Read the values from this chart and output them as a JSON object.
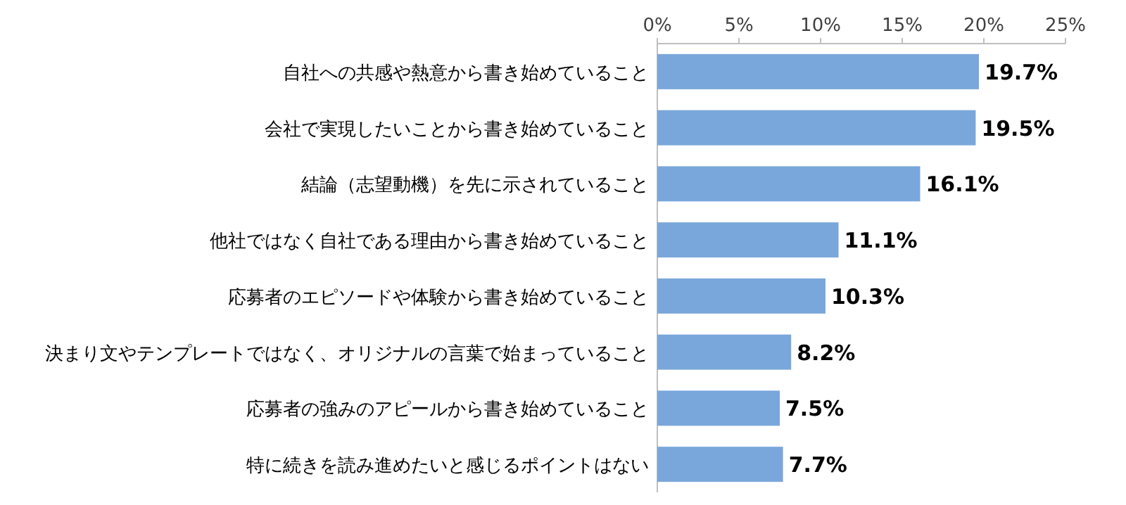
{
  "chart_data": {
    "type": "bar",
    "orientation": "horizontal",
    "color": "#7aa7db",
    "categories": [
      "自社への共感や熱意から書き始めていること",
      "会社で実現したいことから書き始めていること",
      "結論（志望動機）を先に示されていること",
      "他社ではなく自社である理由から書き始めていること",
      "応募者のエピソードや体験から書き始めていること",
      "決まり文やテンプレートではなく、オリジナルの言葉で始まっていること",
      "応募者の強みのアピールから書き始めていること",
      "特に続きを読み進めたいと感じるポイントはない"
    ],
    "values": [
      19.7,
      19.5,
      16.1,
      11.1,
      10.3,
      8.2,
      7.5,
      7.7
    ],
    "value_labels": [
      "19.7%",
      "19.5%",
      "16.1%",
      "11.1%",
      "10.3%",
      "8.2%",
      "7.5%",
      "7.7%"
    ],
    "xlim": [
      0,
      25
    ],
    "xticks": [
      {
        "value": 0,
        "label": "0%"
      },
      {
        "value": 5,
        "label": "5%"
      },
      {
        "value": 10,
        "label": "10%"
      },
      {
        "value": 15,
        "label": "15%"
      },
      {
        "value": 20,
        "label": "20%"
      },
      {
        "value": 25,
        "label": "25%"
      }
    ]
  }
}
